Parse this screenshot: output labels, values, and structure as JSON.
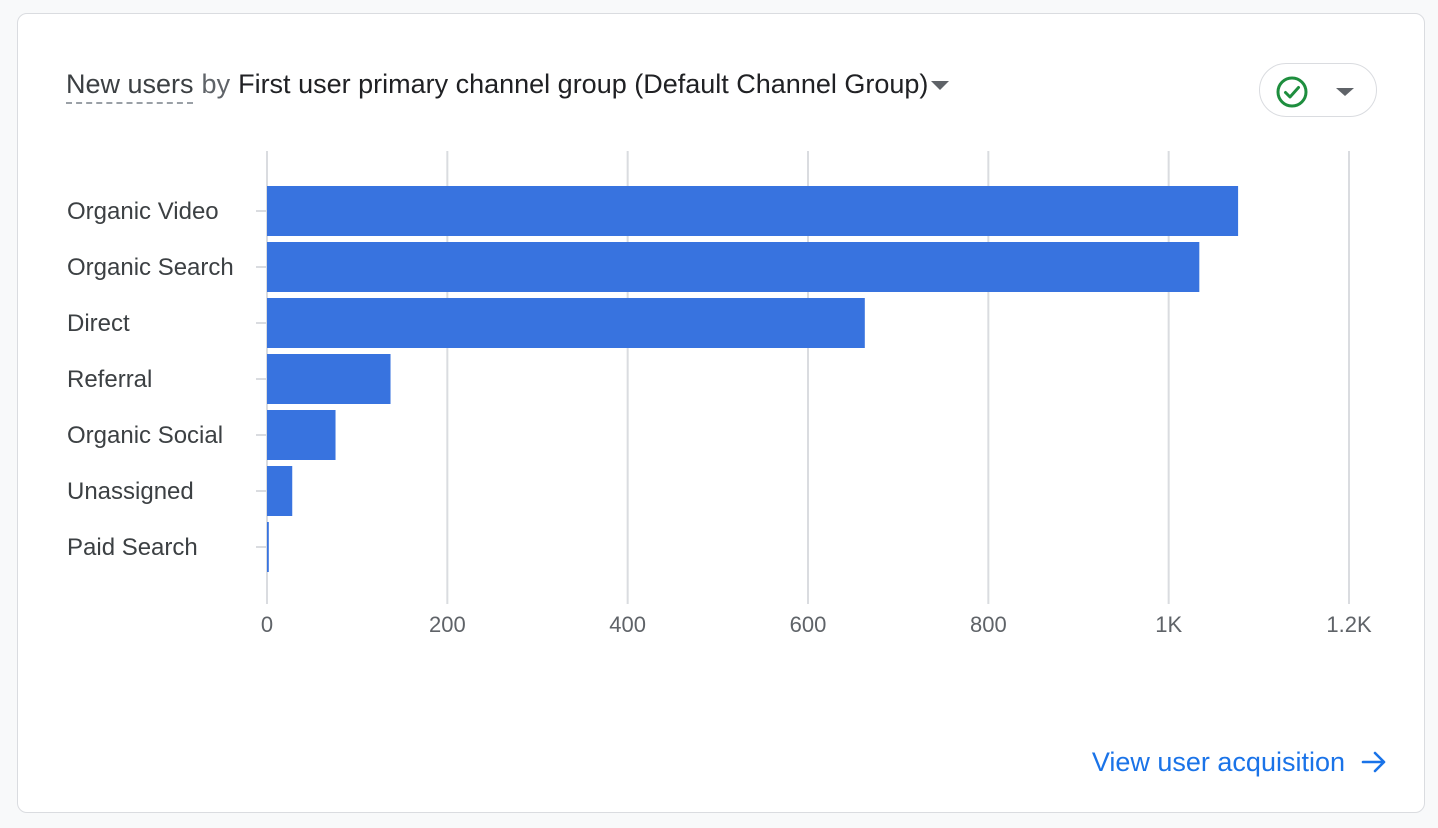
{
  "card": {
    "metric_label": "New users",
    "by_label": "by",
    "dimension_label": "First user primary channel group (Default Channel Group)",
    "link_label": "View user acquisition"
  },
  "icons": {
    "status": "check-circle-icon",
    "dimension_menu": "caret-down-icon",
    "status_menu": "caret-down-icon",
    "link": "arrow-right-icon"
  },
  "colors": {
    "bar": "#3873df",
    "link": "#1a73e8",
    "status_check": "#1e8e3e",
    "grid": "#dadce0"
  },
  "chart_data": {
    "type": "bar",
    "orientation": "horizontal",
    "categories": [
      "Organic Video",
      "Organic Search",
      "Direct",
      "Referral",
      "Organic Social",
      "Unassigned",
      "Paid Search"
    ],
    "values": [
      1077,
      1034,
      663,
      137,
      76,
      28,
      2
    ],
    "xlim": [
      0,
      1200
    ],
    "xticks": [
      0,
      200,
      400,
      600,
      800,
      1000,
      1200
    ],
    "xtick_labels": [
      "0",
      "200",
      "400",
      "600",
      "800",
      "1K",
      "1.2K"
    ],
    "grid": "vertical",
    "legend": "none"
  }
}
